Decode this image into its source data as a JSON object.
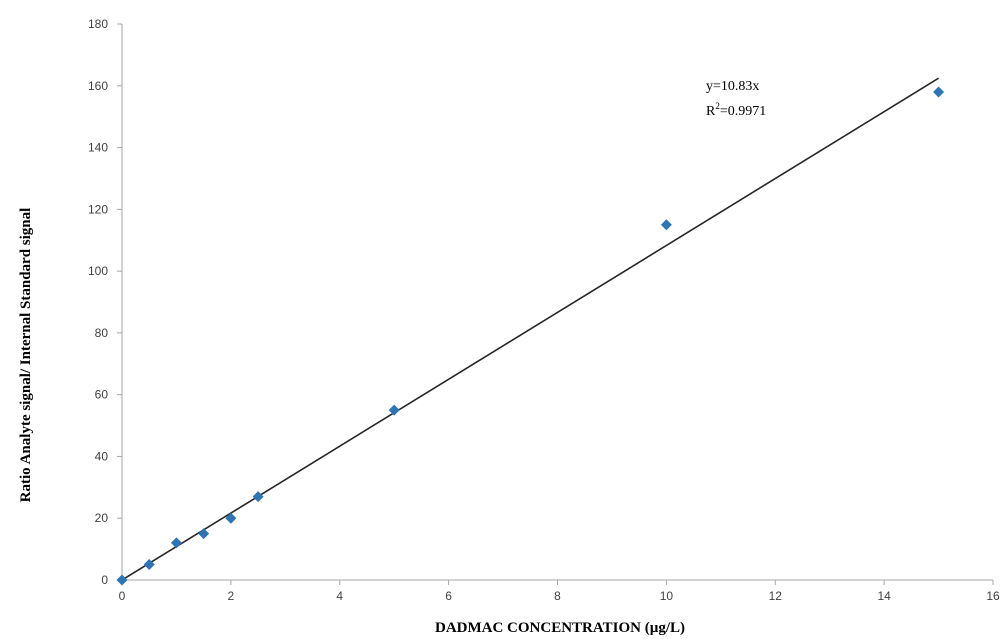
{
  "chart_data": {
    "type": "scatter",
    "title": "",
    "xlabel": "DADMAC CONCENTRATION (µg/L)",
    "ylabel": "Ratio Analyte signal/ Internal Standard signal",
    "xlim": [
      0,
      16
    ],
    "ylim": [
      0,
      180
    ],
    "xticks": [
      "0",
      "2",
      "4",
      "6",
      "8",
      "10",
      "12",
      "14",
      "16"
    ],
    "yticks": [
      "0",
      "20",
      "40",
      "60",
      "80",
      "100",
      "120",
      "140",
      "160",
      "180"
    ],
    "grid": false,
    "legend": "none",
    "series": [
      {
        "marker": "diamond",
        "color": "#2E75B6",
        "points": [
          {
            "x": 0,
            "y": 0
          },
          {
            "x": 0.5,
            "y": 5
          },
          {
            "x": 1,
            "y": 12
          },
          {
            "x": 1.5,
            "y": 15
          },
          {
            "x": 2,
            "y": 20
          },
          {
            "x": 2.5,
            "y": 27
          },
          {
            "x": 5,
            "y": 55
          },
          {
            "x": 10,
            "y": 115
          },
          {
            "x": 15,
            "y": 158
          }
        ]
      }
    ],
    "trendline": {
      "slope": 10.83,
      "x_range": [
        0,
        15
      ],
      "color": "#262626"
    },
    "annotation": {
      "equation_line1": "y=10.83x",
      "r2_prefix": "R",
      "r2_sup": "2",
      "r2_rest": "=0.9971"
    }
  }
}
